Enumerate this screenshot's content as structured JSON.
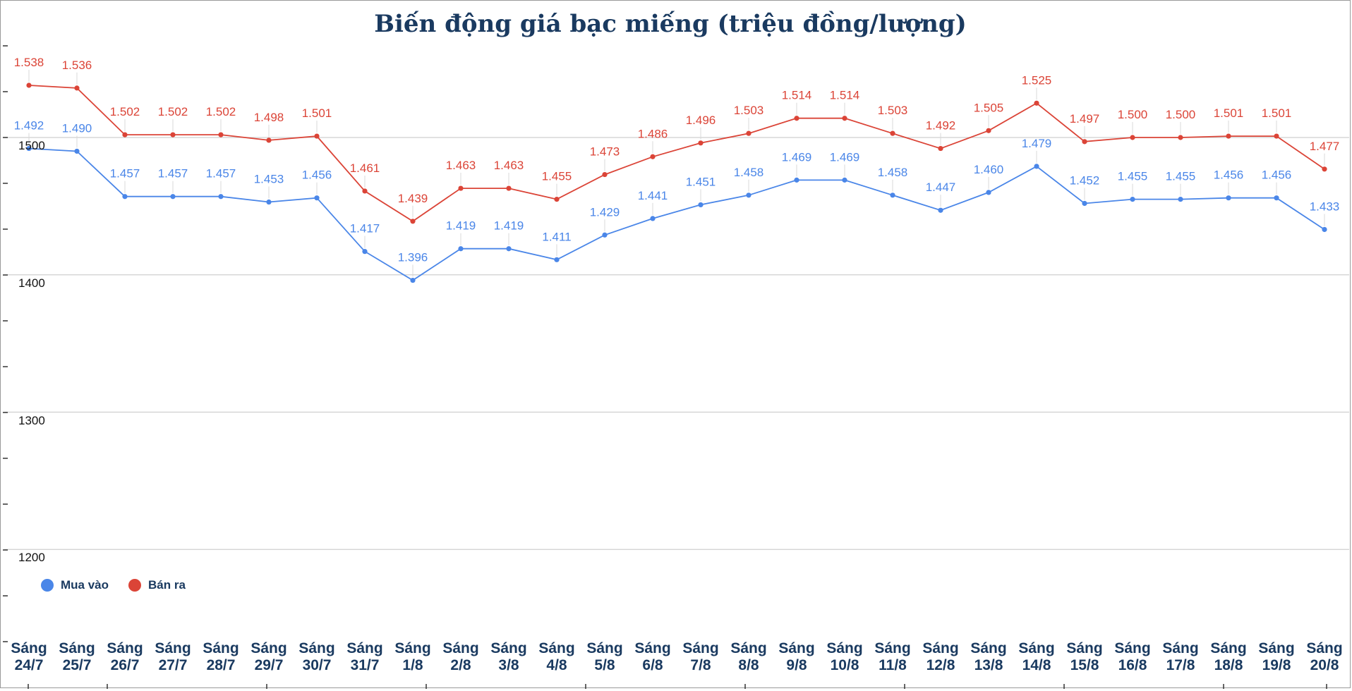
{
  "chart_data": {
    "type": "line",
    "title": "Biến động giá bạc miếng (triệu đồng/lượng)",
    "categories": [
      [
        "Sáng",
        "24/7"
      ],
      [
        "Sáng",
        "25/7"
      ],
      [
        "Sáng",
        "26/7"
      ],
      [
        "Sáng",
        "27/7"
      ],
      [
        "Sáng",
        "28/7"
      ],
      [
        "Sáng",
        "29/7"
      ],
      [
        "Sáng",
        "30/7"
      ],
      [
        "Sáng",
        "31/7"
      ],
      [
        "Sáng",
        "1/8"
      ],
      [
        "Sáng",
        "2/8"
      ],
      [
        "Sáng",
        "3/8"
      ],
      [
        "Sáng",
        "4/8"
      ],
      [
        "Sáng",
        "5/8"
      ],
      [
        "Sáng",
        "6/8"
      ],
      [
        "Sáng",
        "7/8"
      ],
      [
        "Sáng",
        "8/8"
      ],
      [
        "Sáng",
        "9/8"
      ],
      [
        "Sáng",
        "10/8"
      ],
      [
        "Sáng",
        "11/8"
      ],
      [
        "Sáng",
        "12/8"
      ],
      [
        "Sáng",
        "13/8"
      ],
      [
        "Sáng",
        "14/8"
      ],
      [
        "Sáng",
        "15/8"
      ],
      [
        "Sáng",
        "16/8"
      ],
      [
        "Sáng",
        "17/8"
      ],
      [
        "Sáng",
        "18/8"
      ],
      [
        "Sáng",
        "19/8"
      ],
      [
        "Sáng",
        "20/8"
      ]
    ],
    "series": [
      {
        "name": "Mua vào",
        "color": "#4a86e8",
        "values": [
          1492,
          1490,
          1457,
          1457,
          1457,
          1453,
          1456,
          1417,
          1396,
          1419,
          1419,
          1411,
          1429,
          1441,
          1451,
          1458,
          1469,
          1469,
          1458,
          1447,
          1460,
          1479,
          1452,
          1455,
          1455,
          1456,
          1456,
          1433
        ],
        "labels": [
          "1.492",
          "1.490",
          "1.457",
          "1.457",
          "1.457",
          "1.453",
          "1.456",
          "1.417",
          "1.396",
          "1.419",
          "1.419",
          "1.411",
          "1.429",
          "1.441",
          "1.451",
          "1.458",
          "1.469",
          "1.469",
          "1.458",
          "1.447",
          "1.460",
          "1.479",
          "1.452",
          "1.455",
          "1.455",
          "1.456",
          "1.456",
          "1.433"
        ]
      },
      {
        "name": "Bán ra",
        "color": "#db4437",
        "values": [
          1538,
          1536,
          1502,
          1502,
          1502,
          1498,
          1501,
          1461,
          1439,
          1463,
          1463,
          1455,
          1473,
          1486,
          1496,
          1503,
          1514,
          1514,
          1503,
          1492,
          1505,
          1525,
          1497,
          1500,
          1500,
          1501,
          1501,
          1477
        ],
        "labels": [
          "1.538",
          "1.536",
          "1.502",
          "1.502",
          "1.502",
          "1.498",
          "1.501",
          "1.461",
          "1.439",
          "1.463",
          "1.463",
          "1.455",
          "1.473",
          "1.486",
          "1.496",
          "1.503",
          "1.514",
          "1.514",
          "1.503",
          "1.492",
          "1.505",
          "1.525",
          "1.497",
          "1.500",
          "1.500",
          "1.501",
          "1.501",
          "1.477"
        ]
      }
    ],
    "y_ticks": [
      "1500",
      "1400",
      "1300",
      "1200"
    ],
    "y_tick_values": [
      1500,
      1400,
      1300,
      1200
    ],
    "ylim": [
      1140,
      1600
    ],
    "grid": true,
    "legend_position": "bottom-left"
  }
}
